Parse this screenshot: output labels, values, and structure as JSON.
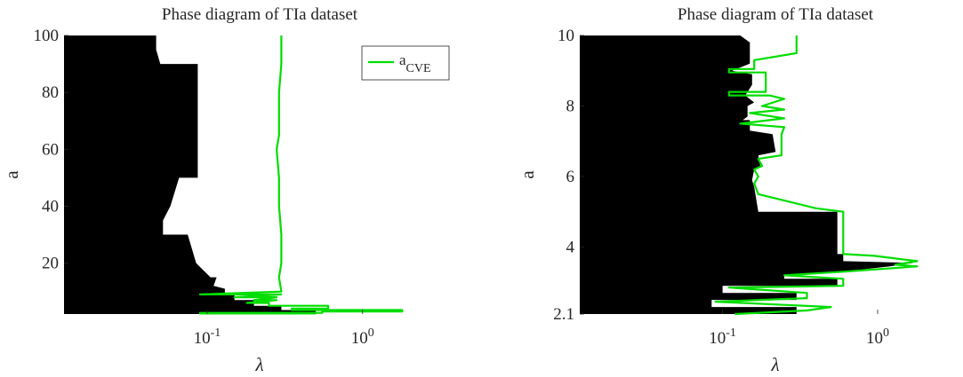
{
  "chart_data": [
    {
      "type": "area",
      "title": "Phase diagram of TIa dataset",
      "xlabel": "λ",
      "ylabel": "a",
      "x_scale": "log",
      "xlim": [
        0.012,
        4.0
      ],
      "ylim": [
        2.1,
        100
      ],
      "x_tick_labels": [
        {
          "value": 0.1,
          "base": "10",
          "exp": "-1"
        },
        {
          "value": 1,
          "base": "10",
          "exp": "0"
        }
      ],
      "y_ticks": [
        20,
        40,
        60,
        80,
        100
      ],
      "y_tick_labels": [
        "20",
        "40",
        "60",
        "80",
        "100"
      ],
      "grid": false,
      "legend": {
        "position": "top-right",
        "entries": [
          {
            "label": "a",
            "subscript": "CVE",
            "color": "#00dd00"
          }
        ]
      },
      "colors": {
        "region": "#000000",
        "curve": "#00dd00"
      },
      "region": [
        {
          "a": 2.1,
          "lambda": 0.012
        },
        {
          "a": 2.1,
          "lambda": 0.5
        },
        {
          "a": 3.5,
          "lambda": 0.5
        },
        {
          "a": 3.5,
          "lambda": 0.3
        },
        {
          "a": 5,
          "lambda": 0.3
        },
        {
          "a": 5,
          "lambda": 0.2
        },
        {
          "a": 7,
          "lambda": 0.2
        },
        {
          "a": 7,
          "lambda": 0.15
        },
        {
          "a": 9,
          "lambda": 0.15
        },
        {
          "a": 9,
          "lambda": 0.13
        },
        {
          "a": 11,
          "lambda": 0.13
        },
        {
          "a": 12,
          "lambda": 0.11
        },
        {
          "a": 15,
          "lambda": 0.115
        },
        {
          "a": 15,
          "lambda": 0.105
        },
        {
          "a": 20,
          "lambda": 0.085
        },
        {
          "a": 30,
          "lambda": 0.075
        },
        {
          "a": 30,
          "lambda": 0.052
        },
        {
          "a": 35,
          "lambda": 0.052
        },
        {
          "a": 40,
          "lambda": 0.058
        },
        {
          "a": 50,
          "lambda": 0.066
        },
        {
          "a": 50,
          "lambda": 0.087
        },
        {
          "a": 90,
          "lambda": 0.087
        },
        {
          "a": 90,
          "lambda": 0.05
        },
        {
          "a": 95,
          "lambda": 0.047
        },
        {
          "a": 100,
          "lambda": 0.047
        },
        {
          "a": 100,
          "lambda": 0.012
        }
      ],
      "series": [
        {
          "name": "a_CVE",
          "points": [
            {
              "a": 100,
              "lambda": 0.3
            },
            {
              "a": 90,
              "lambda": 0.3
            },
            {
              "a": 80,
              "lambda": 0.29
            },
            {
              "a": 65,
              "lambda": 0.29
            },
            {
              "a": 60,
              "lambda": 0.28
            },
            {
              "a": 50,
              "lambda": 0.29
            },
            {
              "a": 40,
              "lambda": 0.29
            },
            {
              "a": 30,
              "lambda": 0.3
            },
            {
              "a": 20,
              "lambda": 0.3
            },
            {
              "a": 15,
              "lambda": 0.29
            },
            {
              "a": 10,
              "lambda": 0.3
            },
            {
              "a": 9,
              "lambda": 0.09
            },
            {
              "a": 9,
              "lambda": 0.3
            },
            {
              "a": 8,
              "lambda": 0.15
            },
            {
              "a": 8,
              "lambda": 0.28
            },
            {
              "a": 7,
              "lambda": 0.2
            },
            {
              "a": 7,
              "lambda": 0.28
            },
            {
              "a": 6,
              "lambda": 0.18
            },
            {
              "a": 6,
              "lambda": 0.25
            },
            {
              "a": 5,
              "lambda": 0.25
            },
            {
              "a": 5,
              "lambda": 0.6
            },
            {
              "a": 4,
              "lambda": 0.6
            },
            {
              "a": 4,
              "lambda": 0.35
            },
            {
              "a": 3.5,
              "lambda": 0.35
            },
            {
              "a": 3.5,
              "lambda": 1.8
            },
            {
              "a": 3,
              "lambda": 1.8
            },
            {
              "a": 3,
              "lambda": 0.55
            },
            {
              "a": 2.5,
              "lambda": 0.55
            },
            {
              "a": 2.5,
              "lambda": 0.09
            },
            {
              "a": 2.3,
              "lambda": 0.09
            },
            {
              "a": 2.3,
              "lambda": 0.5
            },
            {
              "a": 2.1,
              "lambda": 0.5
            }
          ]
        }
      ]
    },
    {
      "type": "area",
      "title": "Phase diagram of TIa dataset",
      "xlabel": "λ",
      "ylabel": "a",
      "x_scale": "log",
      "xlim": [
        0.012,
        4.0
      ],
      "ylim": [
        2.1,
        10
      ],
      "x_tick_labels": [
        {
          "value": 0.1,
          "base": "10",
          "exp": "-1"
        },
        {
          "value": 1,
          "base": "10",
          "exp": "0"
        }
      ],
      "y_ticks": [
        2.1,
        4,
        6,
        8,
        10
      ],
      "y_tick_labels": [
        "2.1",
        "4",
        "6",
        "8",
        "10"
      ],
      "grid": false,
      "colors": {
        "region": "#000000",
        "curve": "#00dd00"
      },
      "region": [
        {
          "a": 2.1,
          "lambda": 0.012
        },
        {
          "a": 2.1,
          "lambda": 0.3
        },
        {
          "a": 2.3,
          "lambda": 0.3
        },
        {
          "a": 2.3,
          "lambda": 0.085
        },
        {
          "a": 2.5,
          "lambda": 0.085
        },
        {
          "a": 2.5,
          "lambda": 0.3
        },
        {
          "a": 2.7,
          "lambda": 0.3
        },
        {
          "a": 2.7,
          "lambda": 0.1
        },
        {
          "a": 2.9,
          "lambda": 0.1
        },
        {
          "a": 2.9,
          "lambda": 0.55
        },
        {
          "a": 3.1,
          "lambda": 0.55
        },
        {
          "a": 3.1,
          "lambda": 0.25
        },
        {
          "a": 3.2,
          "lambda": 0.25
        },
        {
          "a": 3.3,
          "lambda": 0.6
        },
        {
          "a": 3.45,
          "lambda": 1.2
        },
        {
          "a": 3.55,
          "lambda": 1.7
        },
        {
          "a": 3.6,
          "lambda": 0.6
        },
        {
          "a": 3.8,
          "lambda": 0.6
        },
        {
          "a": 3.8,
          "lambda": 0.55
        },
        {
          "a": 5,
          "lambda": 0.55
        },
        {
          "a": 5,
          "lambda": 0.17
        },
        {
          "a": 5.7,
          "lambda": 0.16
        },
        {
          "a": 5.9,
          "lambda": 0.155
        },
        {
          "a": 6.2,
          "lambda": 0.16
        },
        {
          "a": 6.3,
          "lambda": 0.175
        },
        {
          "a": 6.6,
          "lambda": 0.17
        },
        {
          "a": 6.7,
          "lambda": 0.22
        },
        {
          "a": 7.2,
          "lambda": 0.21
        },
        {
          "a": 7.3,
          "lambda": 0.15
        },
        {
          "a": 7.6,
          "lambda": 0.15
        },
        {
          "a": 7.6,
          "lambda": 0.135
        },
        {
          "a": 7.7,
          "lambda": 0.145
        },
        {
          "a": 8.0,
          "lambda": 0.145
        },
        {
          "a": 8.1,
          "lambda": 0.16
        },
        {
          "a": 8.3,
          "lambda": 0.14
        },
        {
          "a": 8.6,
          "lambda": 0.155
        },
        {
          "a": 8.9,
          "lambda": 0.155
        },
        {
          "a": 9,
          "lambda": 0.115
        },
        {
          "a": 9.2,
          "lambda": 0.15
        },
        {
          "a": 9.8,
          "lambda": 0.15
        },
        {
          "a": 10,
          "lambda": 0.13
        },
        {
          "a": 10,
          "lambda": 0.012
        }
      ],
      "series": [
        {
          "name": "a_CVE",
          "points": [
            {
              "a": 10,
              "lambda": 0.3
            },
            {
              "a": 9.5,
              "lambda": 0.3
            },
            {
              "a": 9.3,
              "lambda": 0.16
            },
            {
              "a": 9.05,
              "lambda": 0.16
            },
            {
              "a": 9.05,
              "lambda": 0.11
            },
            {
              "a": 8.95,
              "lambda": 0.11
            },
            {
              "a": 8.95,
              "lambda": 0.19
            },
            {
              "a": 8.4,
              "lambda": 0.19
            },
            {
              "a": 8.4,
              "lambda": 0.11
            },
            {
              "a": 8.3,
              "lambda": 0.11
            },
            {
              "a": 8.3,
              "lambda": 0.2
            },
            {
              "a": 8.2,
              "lambda": 0.25
            },
            {
              "a": 8.0,
              "lambda": 0.18
            },
            {
              "a": 7.9,
              "lambda": 0.25
            },
            {
              "a": 7.8,
              "lambda": 0.15
            },
            {
              "a": 7.65,
              "lambda": 0.25
            },
            {
              "a": 7.5,
              "lambda": 0.13
            },
            {
              "a": 7.4,
              "lambda": 0.25
            },
            {
              "a": 7.2,
              "lambda": 0.24
            },
            {
              "a": 6.6,
              "lambda": 0.24
            },
            {
              "a": 6.5,
              "lambda": 0.17
            },
            {
              "a": 6.3,
              "lambda": 0.18
            },
            {
              "a": 6.2,
              "lambda": 0.16
            },
            {
              "a": 6,
              "lambda": 0.17
            },
            {
              "a": 5.8,
              "lambda": 0.16
            },
            {
              "a": 5.5,
              "lambda": 0.17
            },
            {
              "a": 5.1,
              "lambda": 0.4
            },
            {
              "a": 5,
              "lambda": 0.6
            },
            {
              "a": 3.8,
              "lambda": 0.6
            },
            {
              "a": 3.75,
              "lambda": 0.95
            },
            {
              "a": 3.6,
              "lambda": 1.8
            },
            {
              "a": 3.5,
              "lambda": 1.3
            },
            {
              "a": 3.45,
              "lambda": 1.8
            },
            {
              "a": 3.3,
              "lambda": 0.6
            },
            {
              "a": 3.2,
              "lambda": 0.25
            },
            {
              "a": 3.1,
              "lambda": 0.6
            },
            {
              "a": 2.9,
              "lambda": 0.6
            },
            {
              "a": 2.85,
              "lambda": 0.11
            },
            {
              "a": 2.7,
              "lambda": 0.35
            },
            {
              "a": 2.55,
              "lambda": 0.35
            },
            {
              "a": 2.45,
              "lambda": 0.09
            },
            {
              "a": 2.3,
              "lambda": 0.5
            },
            {
              "a": 2.2,
              "lambda": 0.35
            },
            {
              "a": 2.1,
              "lambda": 0.12
            }
          ]
        }
      ]
    }
  ]
}
